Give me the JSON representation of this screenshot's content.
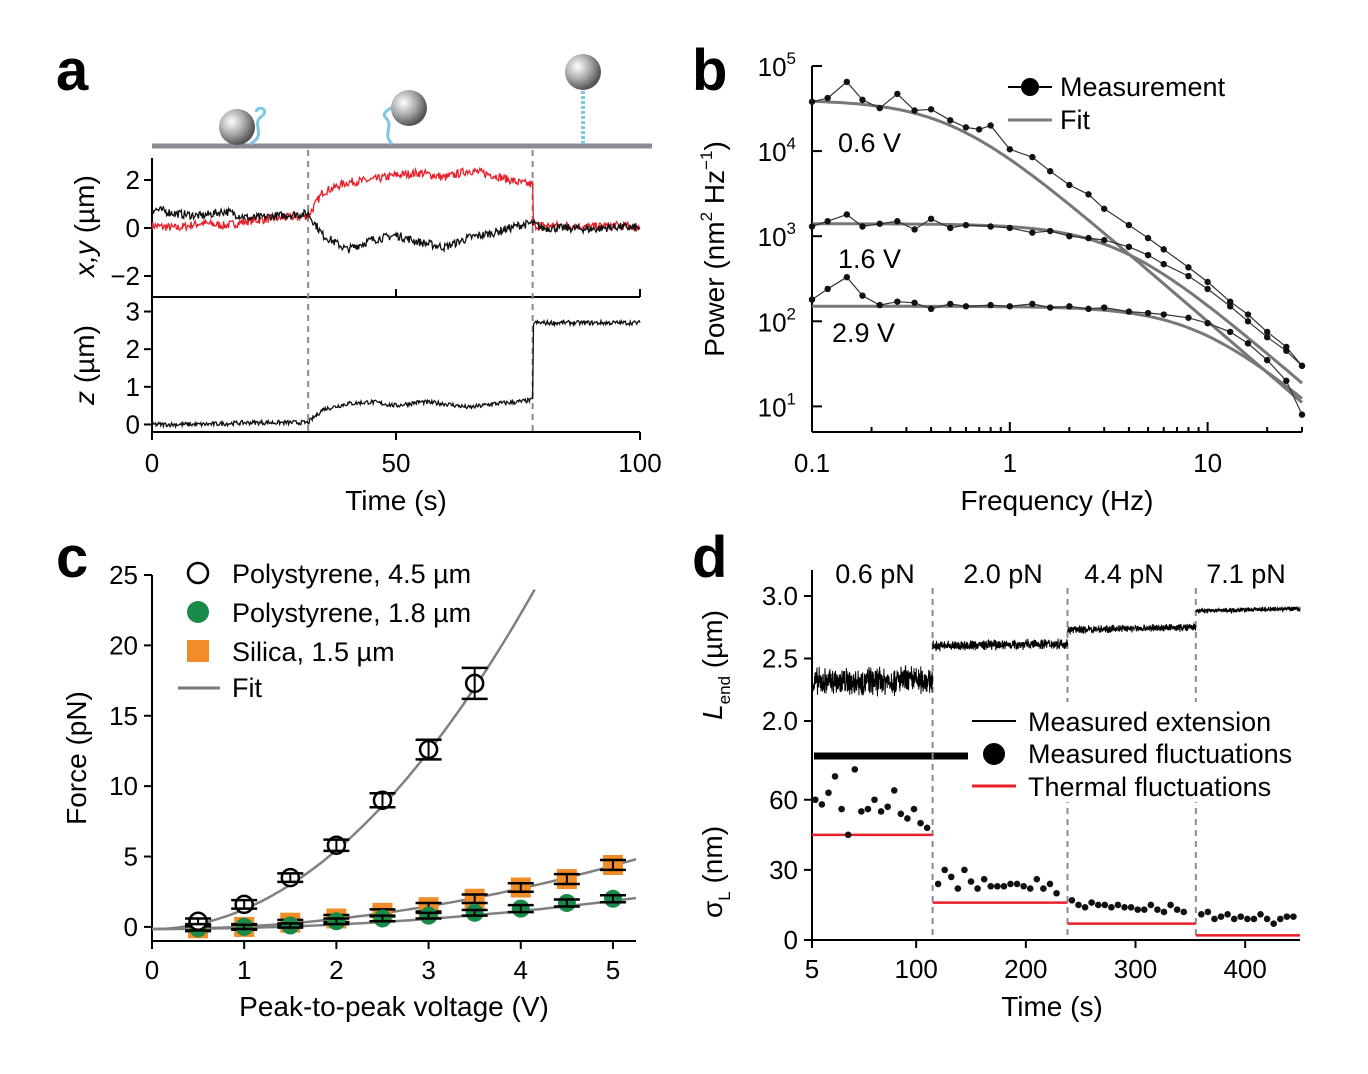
{
  "panels": {
    "a": {
      "letter": "a"
    },
    "b": {
      "letter": "b"
    },
    "c": {
      "letter": "c"
    },
    "d": {
      "letter": "d"
    }
  },
  "chart_data": [
    {
      "panel": "a",
      "type": "line",
      "xlabel": "Time (s)",
      "xlim": [
        0,
        100
      ],
      "xticks": [
        "0",
        "50",
        "100"
      ],
      "dividers": [
        32,
        78
      ],
      "colors": {
        "x": "#e8202a",
        "y": "#111111",
        "z": "#111111"
      },
      "subplots": [
        {
          "id": "xy",
          "ylabel_main": "x,y",
          "ylabel_unit": " (µm)",
          "ylim": [
            -3,
            3
          ],
          "yticks": [
            "2",
            "0",
            "−2"
          ],
          "series": [
            {
              "id": "x",
              "color": "#e8202a",
              "x": [
                0,
                5,
                10,
                15,
                20,
                25,
                32,
                35,
                40,
                45,
                50,
                55,
                60,
                65,
                70,
                75,
                78,
                80,
                85,
                90,
                95,
                100
              ],
              "y": [
                0.1,
                0,
                0.2,
                0.1,
                0.3,
                0.4,
                0.5,
                1.5,
                1.9,
                2.0,
                2.2,
                2.3,
                2.1,
                2.4,
                2.2,
                1.9,
                1.8,
                0.1,
                0.1,
                0.05,
                0.1,
                0.05
              ]
            },
            {
              "id": "y",
              "color": "#111111",
              "x": [
                0,
                5,
                10,
                15,
                20,
                25,
                32,
                35,
                40,
                45,
                50,
                55,
                60,
                65,
                70,
                75,
                78,
                80,
                85,
                90,
                95,
                100
              ],
              "y": [
                0.8,
                0.6,
                0.5,
                0.7,
                0.4,
                0.5,
                0.6,
                -0.3,
                -0.9,
                -0.5,
                -0.3,
                -0.6,
                -0.8,
                -0.4,
                -0.2,
                0.1,
                0.2,
                0,
                0,
                -0.05,
                0.05,
                0
              ]
            }
          ]
        },
        {
          "id": "z",
          "ylabel_main": "z",
          "ylabel_unit": " (µm)",
          "ylim": [
            -0.2,
            3.2
          ],
          "yticks": [
            "3",
            "2",
            "1",
            "0"
          ],
          "series": [
            {
              "id": "z",
              "color": "#111111",
              "x": [
                0,
                10,
                20,
                32,
                35,
                40,
                45,
                50,
                55,
                60,
                65,
                70,
                75,
                78,
                80,
                90,
                100
              ],
              "y": [
                0,
                0,
                0.05,
                0.05,
                0.4,
                0.55,
                0.6,
                0.5,
                0.6,
                0.55,
                0.45,
                0.55,
                0.6,
                0.65,
                2.7,
                2.7,
                2.7
              ]
            }
          ]
        }
      ]
    },
    {
      "panel": "b",
      "type": "line",
      "xscale": "log",
      "yscale": "log",
      "xlabel": "Frequency (Hz)",
      "ylabel_main": "Power (nm",
      "ylabel_sup1": "2",
      "ylabel_mid": " Hz",
      "ylabel_sup2": "−1",
      "ylabel_end": ")",
      "xlim": [
        0.1,
        30
      ],
      "ylim": [
        5,
        100000
      ],
      "xticks": [
        "0.1",
        "1",
        "10"
      ],
      "yticks": [
        {
          "base": "10",
          "exp": "5"
        },
        {
          "base": "10",
          "exp": "4"
        },
        {
          "base": "10",
          "exp": "3"
        },
        {
          "base": "10",
          "exp": "2"
        },
        {
          "base": "10",
          "exp": "1"
        }
      ],
      "legend": [
        {
          "label": "Measurement",
          "marker": "line-dot"
        },
        {
          "label": "Fit",
          "marker": "line"
        }
      ],
      "series": [
        {
          "name": "0.6 V",
          "label": "0.6 V",
          "fit": {
            "plateau": 40000,
            "fc": 0.5
          },
          "x": [
            0.1,
            0.12,
            0.15,
            0.18,
            0.22,
            0.27,
            0.33,
            0.4,
            0.5,
            0.6,
            0.7,
            0.8,
            1,
            1.3,
            1.6,
            2,
            2.5,
            3,
            4,
            5,
            6,
            8,
            10,
            13,
            16,
            20,
            25,
            30
          ],
          "y": [
            38000,
            42000,
            65000,
            40000,
            32000,
            47000,
            30000,
            31000,
            23000,
            19000,
            18000,
            20000,
            10500,
            8500,
            5800,
            4000,
            3100,
            2100,
            1350,
            950,
            700,
            430,
            290,
            170,
            120,
            75,
            50,
            30
          ]
        },
        {
          "name": "1.6 V",
          "label": "1.6 V",
          "fit": {
            "plateau": 1400,
            "fc": 3.5
          },
          "x": [
            0.1,
            0.12,
            0.15,
            0.18,
            0.22,
            0.27,
            0.33,
            0.4,
            0.5,
            0.6,
            0.8,
            1,
            1.3,
            1.6,
            2,
            2.5,
            3,
            4,
            5,
            6,
            8,
            10,
            13,
            16,
            20,
            25,
            30
          ],
          "y": [
            1300,
            1500,
            1800,
            1300,
            1400,
            1500,
            1200,
            1600,
            1250,
            1350,
            1300,
            1250,
            1100,
            1150,
            1000,
            950,
            900,
            750,
            600,
            470,
            340,
            240,
            150,
            100,
            65,
            45,
            30
          ]
        },
        {
          "name": "2.9 V",
          "label": "2.9 V",
          "fit": {
            "plateau": 150,
            "fc": 9
          },
          "x": [
            0.1,
            0.12,
            0.15,
            0.18,
            0.22,
            0.27,
            0.33,
            0.4,
            0.5,
            0.6,
            0.8,
            1,
            1.3,
            1.6,
            2,
            2.5,
            3,
            4,
            5,
            6,
            8,
            10,
            13,
            16,
            20,
            25,
            30
          ],
          "y": [
            180,
            240,
            330,
            200,
            155,
            170,
            165,
            140,
            160,
            150,
            155,
            150,
            160,
            145,
            150,
            140,
            145,
            130,
            125,
            120,
            110,
            95,
            75,
            55,
            35,
            20,
            8
          ]
        }
      ]
    },
    {
      "panel": "c",
      "type": "scatter",
      "xlabel": "Peak-to-peak voltage (V)",
      "ylabel": "Force (pN)",
      "xlim": [
        0,
        5.25
      ],
      "ylim": [
        -1,
        25
      ],
      "xticks": [
        "0",
        "1",
        "2",
        "3",
        "4",
        "5"
      ],
      "yticks": [
        "0",
        "5",
        "10",
        "15",
        "20",
        "25"
      ],
      "legend": [
        {
          "label": "Polystyrene, 4.5 µm",
          "marker": "open-circle",
          "color": "#000000"
        },
        {
          "label": "Polystyrene, 1.8 µm",
          "marker": "filled-circle",
          "color": "#1a8a4a"
        },
        {
          "label": "Silica, 1.5 µm",
          "marker": "square",
          "color": "#f28c28"
        },
        {
          "label": "Fit",
          "marker": "line",
          "color": "#777777"
        }
      ],
      "series": [
        {
          "id": "ps45",
          "marker": "open-circle",
          "color": "#000000",
          "fit_coef": 1.4,
          "x": [
            0.5,
            1,
            1.5,
            2,
            2.5,
            3,
            3.5
          ],
          "y": [
            0.4,
            1.6,
            3.5,
            5.8,
            9.0,
            12.6,
            17.3
          ],
          "err": [
            0.2,
            0.3,
            0.3,
            0.4,
            0.5,
            0.7,
            1.1
          ]
        },
        {
          "id": "ps18",
          "marker": "filled-circle",
          "color": "#1a8a4a",
          "fit_coef": 0.08,
          "x": [
            0.5,
            1,
            1.5,
            2,
            2.5,
            3,
            3.5,
            4,
            4.5,
            5
          ],
          "y": [
            -0.1,
            0.0,
            0.1,
            0.4,
            0.6,
            0.8,
            1.0,
            1.3,
            1.7,
            2.0
          ],
          "err": [
            0.15,
            0.15,
            0.15,
            0.2,
            0.2,
            0.2,
            0.2,
            0.25,
            0.25,
            0.25
          ]
        },
        {
          "id": "si15",
          "marker": "square",
          "color": "#f28c28",
          "fit_coef": 0.18,
          "x": [
            0.5,
            1,
            1.5,
            2,
            2.5,
            3,
            3.5,
            4,
            4.5,
            5
          ],
          "y": [
            -0.1,
            0.0,
            0.3,
            0.6,
            1.0,
            1.4,
            2.0,
            2.8,
            3.4,
            4.4
          ],
          "err": [
            0.2,
            0.2,
            0.2,
            0.25,
            0.25,
            0.3,
            0.3,
            0.3,
            0.35,
            0.35
          ]
        }
      ]
    },
    {
      "panel": "d",
      "type": "line",
      "xlabel": "Time (s)",
      "xlim": [
        5,
        450
      ],
      "xticks": [
        "5",
        "100",
        "200",
        "300",
        "400"
      ],
      "xtick_values": [
        5,
        100,
        200,
        300,
        400
      ],
      "dividers": [
        115,
        238,
        355
      ],
      "force_labels": [
        "0.6 pN",
        "2.0 pN",
        "4.4 pN",
        "7.1 pN"
      ],
      "legend": [
        {
          "label": "Measured extension",
          "marker": "line",
          "color": "#000000"
        },
        {
          "label": "Measured fluctuations",
          "marker": "dot",
          "color": "#000000"
        },
        {
          "label": "Thermal fluctuations",
          "marker": "line",
          "color": "#e8202a"
        }
      ],
      "subplots": [
        {
          "id": "extension",
          "ylabel_main": "L",
          "ylabel_sub": "end",
          "ylabel_unit": " (µm)",
          "ylim": [
            2.0,
            3.2
          ],
          "yticks": [
            "3.0",
            "2.5",
            "2.0"
          ],
          "segments": [
            {
              "t0": 5,
              "t1": 115,
              "mean": 2.31,
              "noise": 0.11
            },
            {
              "t0": 115,
              "t1": 238,
              "mean": 2.6,
              "noise": 0.04
            },
            {
              "t0": 238,
              "t1": 355,
              "mean": 2.73,
              "noise": 0.03
            },
            {
              "t0": 355,
              "t1": 450,
              "mean": 2.88,
              "noise": 0.02
            }
          ]
        },
        {
          "id": "sigma",
          "ylabel_main": "σ",
          "ylabel_sub": "L",
          "ylabel_unit": " (nm)",
          "ylim": [
            0,
            80
          ],
          "yticks": [
            "60",
            "30",
            "0"
          ],
          "thermal": [
            {
              "t0": 5,
              "t1": 115,
              "value": 45
            },
            {
              "t0": 115,
              "t1": 238,
              "value": 16
            },
            {
              "t0": 238,
              "t1": 355,
              "value": 7
            },
            {
              "t0": 355,
              "t1": 450,
              "value": 2
            }
          ],
          "fluct": {
            "x": [
              8,
              14,
              20,
              26,
              32,
              38,
              44,
              50,
              56,
              62,
              68,
              74,
              80,
              86,
              92,
              98,
              104,
              110,
              120,
              126,
              132,
              138,
              144,
              150,
              156,
              162,
              168,
              174,
              180,
              186,
              192,
              198,
              204,
              210,
              216,
              222,
              228,
              242,
              248,
              254,
              260,
              266,
              272,
              278,
              284,
              290,
              296,
              302,
              308,
              314,
              320,
              326,
              332,
              338,
              344,
              360,
              366,
              372,
              378,
              384,
              390,
              396,
              402,
              408,
              414,
              420,
              426,
              432,
              438,
              444
            ],
            "y": [
              60,
              58,
              63,
              70,
              56,
              45,
              73,
              55,
              56,
              60,
              55,
              57,
              64,
              54,
              52,
              56,
              50,
              48,
              24,
              30,
              27,
              22,
              30,
              25,
              22,
              26,
              23,
              23,
              23,
              24,
              24,
              23,
              22,
              26,
              22,
              24,
              20,
              17,
              15,
              14,
              16,
              15,
              15,
              14,
              15,
              14,
              14,
              13,
              13,
              15,
              13,
              12,
              15,
              13,
              12,
              11,
              12,
              9,
              10,
              11,
              9,
              10,
              9,
              9,
              11,
              9,
              7,
              9,
              10,
              10
            ]
          }
        }
      ]
    }
  ]
}
